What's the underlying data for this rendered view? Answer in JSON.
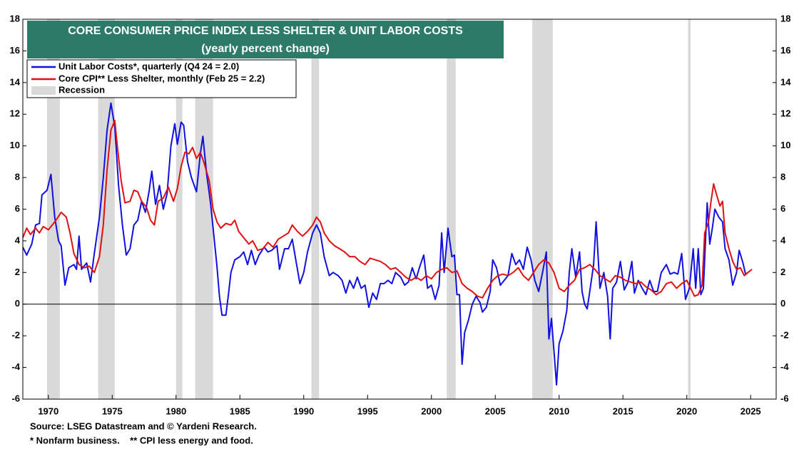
{
  "chart_data": {
    "type": "line",
    "title": "CORE CONSUMER PRICE INDEX LESS SHELTER & UNIT LABOR COSTS",
    "subtitle": "(yearly percent change)",
    "notes": [
      "Source: LSEG Datastream and © Yardeni Research.",
      "* Nonfarm business.    ** CPI less energy and food."
    ],
    "xlim": [
      1968,
      2027
    ],
    "xticks": [
      1970,
      1975,
      1980,
      1985,
      1990,
      1995,
      2000,
      2005,
      2010,
      2015,
      2020,
      2025
    ],
    "ylim": [
      -6,
      18
    ],
    "yticks": [
      -6,
      -4,
      -2,
      0,
      2,
      4,
      6,
      8,
      10,
      12,
      14,
      16,
      18
    ],
    "y2lim": [
      -6,
      18
    ],
    "y2ticks": [
      -6,
      -4,
      -2,
      0,
      2,
      4,
      6,
      8,
      10,
      12,
      14,
      16,
      18
    ],
    "legend": "upper left",
    "recessions": {
      "name": "Recession",
      "color": "#d9d9d9",
      "periods": [
        [
          1969.9,
          1970.9
        ],
        [
          1973.9,
          1975.2
        ],
        [
          1980.0,
          1980.5
        ],
        [
          1981.5,
          1982.9
        ],
        [
          1990.6,
          1991.2
        ],
        [
          2001.2,
          2001.9
        ],
        [
          2007.9,
          2009.5
        ],
        [
          2020.1,
          2020.3
        ]
      ]
    },
    "series": [
      {
        "name": "Unit Labor Costs*, quarterly (Q4 24 = 2.0)",
        "color": "#1010e0",
        "x": [
          1968.0,
          1968.3,
          1968.7,
          1969.0,
          1969.3,
          1969.5,
          1969.9,
          1970.2,
          1970.5,
          1970.8,
          1971.0,
          1971.3,
          1971.6,
          1972.0,
          1972.2,
          1972.4,
          1972.6,
          1973.0,
          1973.3,
          1973.6,
          1974.0,
          1974.3,
          1974.6,
          1974.9,
          1975.2,
          1975.5,
          1975.8,
          1976.1,
          1976.4,
          1976.7,
          1977.0,
          1977.3,
          1977.6,
          1977.9,
          1978.1,
          1978.4,
          1978.7,
          1979.0,
          1979.3,
          1979.6,
          1979.9,
          1980.1,
          1980.4,
          1980.6,
          1980.9,
          1981.2,
          1981.6,
          1981.9,
          1982.1,
          1982.4,
          1982.7,
          1983.0,
          1983.2,
          1983.4,
          1983.6,
          1983.9,
          1984.1,
          1984.3,
          1984.6,
          1985.0,
          1985.3,
          1985.6,
          1985.9,
          1986.2,
          1986.5,
          1986.9,
          1987.2,
          1987.5,
          1987.9,
          1988.1,
          1988.5,
          1988.8,
          1989.1,
          1989.4,
          1989.7,
          1990.0,
          1990.3,
          1990.7,
          1991.0,
          1991.3,
          1991.6,
          1992.0,
          1992.3,
          1992.7,
          1993.0,
          1993.3,
          1993.6,
          1993.9,
          1994.2,
          1994.5,
          1994.8,
          1995.1,
          1995.4,
          1995.7,
          1996.0,
          1996.3,
          1996.6,
          1996.9,
          1997.2,
          1997.6,
          1997.9,
          1998.2,
          1998.5,
          1998.8,
          1999.1,
          1999.4,
          1999.7,
          2000.0,
          2000.3,
          2000.6,
          2000.8,
          2001.0,
          2001.3,
          2001.6,
          2001.8,
          2002.0,
          2002.2,
          2002.4,
          2002.6,
          2002.9,
          2003.2,
          2003.5,
          2003.8,
          2004.0,
          2004.3,
          2004.6,
          2004.8,
          2005.1,
          2005.4,
          2005.7,
          2006.0,
          2006.3,
          2006.6,
          2006.9,
          2007.2,
          2007.5,
          2007.8,
          2008.1,
          2008.4,
          2008.7,
          2009.0,
          2009.2,
          2009.4,
          2009.6,
          2009.8,
          2010.0,
          2010.3,
          2010.6,
          2010.8,
          2011.0,
          2011.3,
          2011.6,
          2011.8,
          2012.0,
          2012.2,
          2012.4,
          2012.7,
          2012.9,
          2013.2,
          2013.5,
          2013.8,
          2014.0,
          2014.2,
          2014.5,
          2014.8,
          2015.1,
          2015.4,
          2015.7,
          2015.9,
          2016.2,
          2016.5,
          2016.8,
          2017.1,
          2017.4,
          2017.7,
          2018.0,
          2018.4,
          2018.7,
          2019.0,
          2019.3,
          2019.6,
          2019.9,
          2020.2,
          2020.5,
          2020.7,
          2020.9,
          2021.1,
          2021.3,
          2021.6,
          2021.8,
          2022.0,
          2022.2,
          2022.5,
          2022.8,
          2023.0,
          2023.3,
          2023.6,
          2023.9,
          2024.1,
          2024.4,
          2024.6,
          2024.8
        ],
        "values": [
          3.6,
          3.1,
          3.8,
          5.0,
          5.1,
          6.9,
          7.2,
          8.2,
          5.5,
          4.0,
          3.7,
          1.2,
          2.3,
          2.5,
          2.2,
          4.3,
          2.2,
          2.6,
          1.4,
          3.2,
          5.5,
          8.0,
          11.0,
          12.7,
          11.2,
          7.5,
          5.0,
          3.1,
          3.5,
          5.0,
          5.3,
          6.5,
          5.8,
          7.2,
          8.4,
          6.3,
          7.5,
          6.0,
          7.0,
          10.0,
          11.4,
          10.1,
          11.5,
          11.3,
          9.0,
          8.0,
          7.1,
          9.5,
          10.6,
          8.2,
          6.4,
          4.0,
          2.4,
          0.5,
          -0.7,
          -0.7,
          0.6,
          2.0,
          2.8,
          3.0,
          3.3,
          2.5,
          3.4,
          2.5,
          3.1,
          3.6,
          3.3,
          3.4,
          3.7,
          2.2,
          3.5,
          3.5,
          4.1,
          2.7,
          1.3,
          2.0,
          3.3,
          4.5,
          5.0,
          4.5,
          3.0,
          1.8,
          2.0,
          1.8,
          1.5,
          0.7,
          1.5,
          1.0,
          1.7,
          1.0,
          1.2,
          -0.2,
          0.7,
          0.3,
          1.3,
          1.3,
          1.5,
          1.3,
          2.0,
          1.7,
          1.2,
          1.4,
          2.3,
          1.6,
          2.4,
          3.1,
          1.0,
          1.2,
          0.3,
          1.2,
          4.5,
          2.0,
          4.8,
          3.0,
          3.1,
          0.6,
          0.6,
          -3.8,
          -1.8,
          -1.0,
          0.0,
          0.5,
          0.1,
          -0.5,
          -0.2,
          0.8,
          2.8,
          2.3,
          1.2,
          1.5,
          1.8,
          3.2,
          2.5,
          2.8,
          2.2,
          3.6,
          2.8,
          1.5,
          0.8,
          2.0,
          3.3,
          -2.2,
          -0.9,
          -3.0,
          -5.1,
          -2.5,
          -1.7,
          -0.4,
          2.0,
          3.5,
          1.7,
          3.3,
          0.8,
          0.0,
          -0.3,
          0.8,
          2.5,
          5.2,
          1.0,
          2.0,
          0.5,
          -2.2,
          1.0,
          1.4,
          2.7,
          0.9,
          1.4,
          2.7,
          0.7,
          1.5,
          1.0,
          0.6,
          1.5,
          0.8,
          0.8,
          2.0,
          2.5,
          1.9,
          2.0,
          1.9,
          3.2,
          0.3,
          1.0,
          3.5,
          1.0,
          3.5,
          0.6,
          1.0,
          6.4,
          3.8,
          4.8,
          6.0,
          5.5,
          5.2,
          3.5,
          2.8,
          1.2,
          2.0,
          3.4,
          2.6,
          1.9,
          2.0
        ]
      },
      {
        "name": "Core CPI** Less Shelter, monthly (Feb 25 = 2.2)",
        "color": "#e01010",
        "x": [
          1968.0,
          1968.3,
          1968.6,
          1969.0,
          1969.3,
          1969.6,
          1970.0,
          1970.3,
          1970.6,
          1971.0,
          1971.4,
          1971.7,
          1972.0,
          1972.4,
          1972.8,
          1973.2,
          1973.6,
          1974.0,
          1974.3,
          1974.6,
          1974.9,
          1975.2,
          1975.4,
          1975.7,
          1976.0,
          1976.4,
          1976.7,
          1977.0,
          1977.3,
          1977.7,
          1978.0,
          1978.3,
          1978.6,
          1979.0,
          1979.4,
          1979.8,
          1980.1,
          1980.4,
          1980.7,
          1981.0,
          1981.3,
          1981.6,
          1981.9,
          1982.2,
          1982.6,
          1982.9,
          1983.2,
          1983.5,
          1983.9,
          1984.3,
          1984.6,
          1984.9,
          1985.3,
          1985.7,
          1986.0,
          1986.4,
          1986.8,
          1987.2,
          1987.6,
          1988.0,
          1988.4,
          1988.8,
          1989.1,
          1989.5,
          1989.9,
          1990.3,
          1990.7,
          1991.0,
          1991.3,
          1991.6,
          1992.0,
          1992.4,
          1992.8,
          1993.2,
          1993.6,
          1994.0,
          1994.4,
          1994.8,
          1995.2,
          1995.6,
          1996.0,
          1996.4,
          1996.8,
          1997.2,
          1997.6,
          1998.0,
          1998.4,
          1998.8,
          1999.2,
          1999.6,
          2000.0,
          2000.4,
          2000.8,
          2001.2,
          2001.6,
          2002.0,
          2002.4,
          2002.8,
          2003.2,
          2003.6,
          2004.0,
          2004.4,
          2004.8,
          2005.2,
          2005.6,
          2006.0,
          2006.4,
          2006.8,
          2007.2,
          2007.6,
          2008.0,
          2008.4,
          2008.8,
          2009.2,
          2009.6,
          2010.0,
          2010.4,
          2010.8,
          2011.2,
          2011.6,
          2012.0,
          2012.4,
          2012.8,
          2013.2,
          2013.6,
          2014.0,
          2014.4,
          2014.8,
          2015.2,
          2015.6,
          2016.0,
          2016.4,
          2016.8,
          2017.2,
          2017.6,
          2018.0,
          2018.4,
          2018.8,
          2019.2,
          2019.6,
          2020.0,
          2020.3,
          2020.6,
          2020.9,
          2021.2,
          2021.4,
          2021.7,
          2021.9,
          2022.1,
          2022.3,
          2022.6,
          2022.8,
          2023.0,
          2023.3,
          2023.6,
          2023.9,
          2024.2,
          2024.5,
          2024.8,
          2025.1
        ],
        "values": [
          4.2,
          4.8,
          4.4,
          4.8,
          4.5,
          4.9,
          4.7,
          5.0,
          5.3,
          5.8,
          5.5,
          4.5,
          3.2,
          2.5,
          2.3,
          2.4,
          2.0,
          3.0,
          5.0,
          8.5,
          11.0,
          11.6,
          10.0,
          7.8,
          6.4,
          6.5,
          7.2,
          7.1,
          6.5,
          6.1,
          5.3,
          5.0,
          6.5,
          6.7,
          7.4,
          6.5,
          7.3,
          8.7,
          9.6,
          9.5,
          9.9,
          9.2,
          9.6,
          8.9,
          7.8,
          6.0,
          5.2,
          4.8,
          5.1,
          5.0,
          5.3,
          4.6,
          4.2,
          3.8,
          4.0,
          3.4,
          3.5,
          3.9,
          3.6,
          4.1,
          4.3,
          4.5,
          5.0,
          4.6,
          4.3,
          4.6,
          5.0,
          5.5,
          5.2,
          4.5,
          4.0,
          3.7,
          3.5,
          3.3,
          3.0,
          3.0,
          2.7,
          2.5,
          2.9,
          2.8,
          2.7,
          2.5,
          2.2,
          2.3,
          2.0,
          1.7,
          1.5,
          1.7,
          1.5,
          1.8,
          1.6,
          2.0,
          2.2,
          2.3,
          2.0,
          2.1,
          1.3,
          1.0,
          0.8,
          0.5,
          0.4,
          1.0,
          1.5,
          1.8,
          1.9,
          1.8,
          2.0,
          2.3,
          1.8,
          1.5,
          2.0,
          2.5,
          2.8,
          2.6,
          2.0,
          1.0,
          0.8,
          1.2,
          1.5,
          2.2,
          2.3,
          2.5,
          2.2,
          1.8,
          1.6,
          1.4,
          1.8,
          1.7,
          1.5,
          1.4,
          1.3,
          1.4,
          1.1,
          0.9,
          0.6,
          0.8,
          1.3,
          1.4,
          1.0,
          1.3,
          1.5,
          1.0,
          0.5,
          0.6,
          1.2,
          4.5,
          5.2,
          6.5,
          7.6,
          7.0,
          6.2,
          6.5,
          4.5,
          3.5,
          2.7,
          2.2,
          2.3,
          1.8,
          2.0,
          2.2
        ]
      }
    ]
  }
}
